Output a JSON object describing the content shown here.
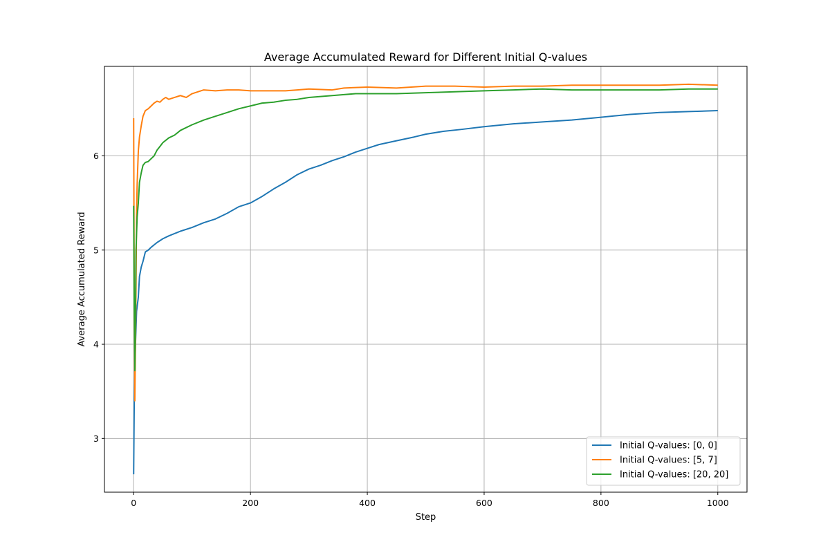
{
  "chart_data": {
    "type": "line",
    "title": "Average Accumulated Reward for Different Initial Q-values",
    "xlabel": "Step",
    "ylabel": "Average Accumulated Reward",
    "xlim": [
      -50,
      1050
    ],
    "ylim": [
      2.43,
      6.95
    ],
    "xticks": [
      0,
      200,
      400,
      600,
      800,
      1000
    ],
    "yticks": [
      3,
      4,
      5,
      6
    ],
    "xtick_labels": [
      "0",
      "200",
      "400",
      "600",
      "800",
      "1000"
    ],
    "ytick_labels": [
      "3",
      "4",
      "5",
      "6"
    ],
    "grid": true,
    "legend_position": "bottom-right",
    "series": [
      {
        "name": "Initial Q-values: [0, 0]",
        "color": "#1f77b4",
        "points": [
          [
            0,
            2.62
          ],
          [
            1,
            3.39
          ],
          [
            2,
            3.75
          ],
          [
            3,
            3.98
          ],
          [
            5,
            4.35
          ],
          [
            8,
            4.5
          ],
          [
            10,
            4.72
          ],
          [
            13,
            4.82
          ],
          [
            16,
            4.88
          ],
          [
            20,
            4.98
          ],
          [
            25,
            5.0
          ],
          [
            30,
            5.03
          ],
          [
            40,
            5.08
          ],
          [
            50,
            5.12
          ],
          [
            60,
            5.15
          ],
          [
            80,
            5.2
          ],
          [
            100,
            5.24
          ],
          [
            120,
            5.29
          ],
          [
            140,
            5.33
          ],
          [
            160,
            5.39
          ],
          [
            180,
            5.46
          ],
          [
            200,
            5.5
          ],
          [
            220,
            5.57
          ],
          [
            240,
            5.65
          ],
          [
            260,
            5.72
          ],
          [
            280,
            5.8
          ],
          [
            300,
            5.86
          ],
          [
            320,
            5.9
          ],
          [
            340,
            5.95
          ],
          [
            360,
            5.99
          ],
          [
            380,
            6.04
          ],
          [
            400,
            6.08
          ],
          [
            420,
            6.12
          ],
          [
            450,
            6.16
          ],
          [
            480,
            6.2
          ],
          [
            500,
            6.23
          ],
          [
            530,
            6.26
          ],
          [
            560,
            6.28
          ],
          [
            600,
            6.31
          ],
          [
            650,
            6.34
          ],
          [
            700,
            6.36
          ],
          [
            750,
            6.38
          ],
          [
            800,
            6.41
          ],
          [
            850,
            6.44
          ],
          [
            900,
            6.46
          ],
          [
            950,
            6.47
          ],
          [
            1000,
            6.48
          ]
        ]
      },
      {
        "name": "Initial Q-values: [5, 7]",
        "color": "#ff7f0e",
        "points": [
          [
            0,
            6.4
          ],
          [
            1,
            4.5
          ],
          [
            2,
            3.4
          ],
          [
            3,
            3.95
          ],
          [
            4,
            4.6
          ],
          [
            5,
            5.4
          ],
          [
            6,
            5.7
          ],
          [
            8,
            6.05
          ],
          [
            10,
            6.2
          ],
          [
            13,
            6.32
          ],
          [
            16,
            6.42
          ],
          [
            20,
            6.48
          ],
          [
            25,
            6.5
          ],
          [
            30,
            6.53
          ],
          [
            35,
            6.56
          ],
          [
            40,
            6.58
          ],
          [
            45,
            6.57
          ],
          [
            50,
            6.6
          ],
          [
            55,
            6.62
          ],
          [
            60,
            6.6
          ],
          [
            70,
            6.62
          ],
          [
            80,
            6.64
          ],
          [
            90,
            6.62
          ],
          [
            100,
            6.66
          ],
          [
            120,
            6.7
          ],
          [
            140,
            6.69
          ],
          [
            160,
            6.7
          ],
          [
            180,
            6.7
          ],
          [
            200,
            6.69
          ],
          [
            220,
            6.69
          ],
          [
            240,
            6.69
          ],
          [
            260,
            6.69
          ],
          [
            280,
            6.7
          ],
          [
            300,
            6.71
          ],
          [
            340,
            6.7
          ],
          [
            360,
            6.72
          ],
          [
            400,
            6.73
          ],
          [
            450,
            6.72
          ],
          [
            500,
            6.74
          ],
          [
            550,
            6.74
          ],
          [
            600,
            6.73
          ],
          [
            650,
            6.74
          ],
          [
            700,
            6.74
          ],
          [
            750,
            6.75
          ],
          [
            800,
            6.75
          ],
          [
            850,
            6.75
          ],
          [
            900,
            6.75
          ],
          [
            950,
            6.76
          ],
          [
            1000,
            6.75
          ]
        ]
      },
      {
        "name": "Initial Q-values: [20, 20]",
        "color": "#2ca02c",
        "points": [
          [
            0,
            5.47
          ],
          [
            1,
            4.4
          ],
          [
            2,
            3.72
          ],
          [
            3,
            4.2
          ],
          [
            4,
            5.0
          ],
          [
            6,
            5.35
          ],
          [
            8,
            5.5
          ],
          [
            10,
            5.72
          ],
          [
            13,
            5.82
          ],
          [
            16,
            5.9
          ],
          [
            20,
            5.93
          ],
          [
            25,
            5.94
          ],
          [
            30,
            5.97
          ],
          [
            35,
            6.0
          ],
          [
            40,
            6.06
          ],
          [
            45,
            6.1
          ],
          [
            50,
            6.14
          ],
          [
            60,
            6.19
          ],
          [
            70,
            6.22
          ],
          [
            80,
            6.27
          ],
          [
            90,
            6.3
          ],
          [
            100,
            6.33
          ],
          [
            120,
            6.38
          ],
          [
            140,
            6.42
          ],
          [
            160,
            6.46
          ],
          [
            180,
            6.5
          ],
          [
            200,
            6.53
          ],
          [
            220,
            6.56
          ],
          [
            240,
            6.57
          ],
          [
            260,
            6.59
          ],
          [
            280,
            6.6
          ],
          [
            300,
            6.62
          ],
          [
            320,
            6.63
          ],
          [
            340,
            6.64
          ],
          [
            360,
            6.65
          ],
          [
            380,
            6.66
          ],
          [
            400,
            6.66
          ],
          [
            450,
            6.66
          ],
          [
            500,
            6.67
          ],
          [
            550,
            6.68
          ],
          [
            600,
            6.69
          ],
          [
            650,
            6.7
          ],
          [
            700,
            6.71
          ],
          [
            750,
            6.7
          ],
          [
            800,
            6.7
          ],
          [
            850,
            6.7
          ],
          [
            900,
            6.7
          ],
          [
            950,
            6.71
          ],
          [
            1000,
            6.71
          ]
        ]
      }
    ]
  }
}
